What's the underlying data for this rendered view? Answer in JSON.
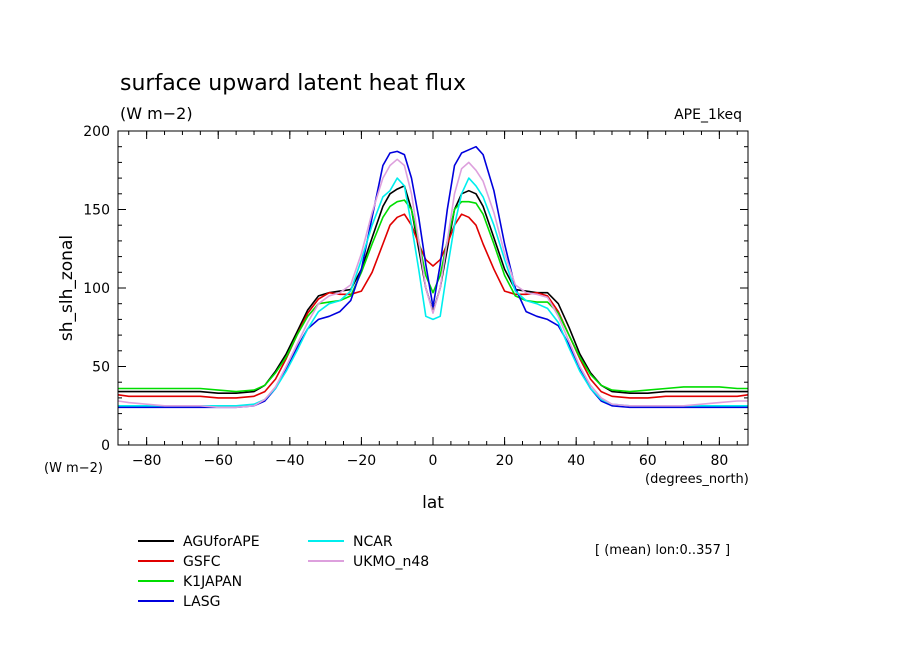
{
  "chart_data": {
    "type": "line",
    "title": "surface upward latent heat flux",
    "units": "(W m−2)",
    "units_bottom": "(W m−2)",
    "experiment": "APE_1keq",
    "ylabel": "sh_slh_zonal",
    "xlabel": "lat",
    "x_units": "(degrees_north)",
    "note": "[ (mean) lon:0..357 ]",
    "xlim": [
      -88,
      88
    ],
    "ylim": [
      0,
      200
    ],
    "x_ticks": [
      -80,
      -60,
      -40,
      -20,
      0,
      20,
      40,
      60,
      80
    ],
    "y_ticks": [
      0,
      50,
      100,
      150,
      200
    ],
    "grid": false,
    "legend_position": "bottom-left",
    "x": [
      -88,
      -85,
      -80,
      -75,
      -70,
      -65,
      -60,
      -55,
      -50,
      -47,
      -44,
      -41,
      -38,
      -35,
      -32,
      -29,
      -26,
      -23,
      -20,
      -17,
      -14,
      -12,
      -10,
      -8,
      -6,
      -4,
      -2,
      0,
      2,
      4,
      6,
      8,
      10,
      12,
      14,
      17,
      20,
      23,
      26,
      29,
      32,
      35,
      38,
      41,
      44,
      47,
      50,
      55,
      60,
      65,
      70,
      75,
      80,
      85,
      88
    ],
    "series": [
      {
        "name": "AGUforAPE",
        "color": "#000000",
        "values": [
          34,
          34,
          34,
          34,
          34,
          34,
          33,
          33,
          34,
          38,
          47,
          58,
          72,
          86,
          95,
          97,
          98,
          99,
          112,
          132,
          152,
          160,
          163,
          165,
          150,
          125,
          100,
          85,
          100,
          125,
          150,
          160,
          162,
          160,
          152,
          132,
          112,
          99,
          98,
          97,
          97,
          90,
          75,
          58,
          46,
          38,
          34,
          33,
          33,
          34,
          34,
          34,
          34,
          34,
          34
        ]
      },
      {
        "name": "GSFC",
        "color": "#e00000",
        "values": [
          32,
          31,
          31,
          31,
          31,
          31,
          30,
          30,
          31,
          34,
          42,
          55,
          70,
          84,
          93,
          97,
          96,
          96,
          98,
          110,
          128,
          140,
          145,
          147,
          140,
          128,
          118,
          114,
          118,
          128,
          140,
          147,
          145,
          140,
          128,
          112,
          98,
          96,
          96,
          97,
          95,
          85,
          70,
          55,
          42,
          34,
          31,
          30,
          30,
          31,
          31,
          31,
          31,
          31,
          32
        ]
      },
      {
        "name": "K1JAPAN",
        "color": "#00dd00",
        "values": [
          36,
          36,
          36,
          36,
          36,
          36,
          35,
          34,
          35,
          38,
          46,
          56,
          70,
          82,
          90,
          91,
          92,
          95,
          110,
          128,
          145,
          152,
          155,
          156,
          150,
          130,
          108,
          97,
          108,
          130,
          150,
          155,
          155,
          154,
          147,
          128,
          108,
          95,
          92,
          91,
          91,
          84,
          70,
          56,
          45,
          38,
          35,
          34,
          35,
          36,
          37,
          37,
          37,
          36,
          36
        ]
      },
      {
        "name": "LASG",
        "color": "#0000dd",
        "values": [
          24,
          24,
          24,
          24,
          24,
          24,
          24,
          24,
          25,
          28,
          36,
          48,
          62,
          74,
          80,
          82,
          85,
          92,
          112,
          145,
          178,
          186,
          187,
          185,
          170,
          145,
          115,
          88,
          115,
          150,
          178,
          186,
          188,
          190,
          185,
          162,
          128,
          100,
          85,
          82,
          80,
          76,
          64,
          48,
          36,
          28,
          25,
          24,
          24,
          24,
          24,
          24,
          24,
          24,
          24
        ]
      },
      {
        "name": "NCAR",
        "color": "#00eeee",
        "values": [
          25,
          25,
          25,
          25,
          25,
          25,
          25,
          25,
          26,
          29,
          36,
          47,
          60,
          74,
          85,
          90,
          92,
          98,
          118,
          140,
          158,
          162,
          170,
          165,
          140,
          112,
          82,
          80,
          82,
          112,
          140,
          160,
          170,
          165,
          158,
          140,
          118,
          98,
          92,
          90,
          87,
          78,
          62,
          47,
          36,
          29,
          26,
          25,
          25,
          25,
          25,
          25,
          25,
          25,
          25
        ]
      },
      {
        "name": "UKMO_n48",
        "color": "#dda0dd",
        "values": [
          28,
          27,
          26,
          25,
          25,
          25,
          24,
          24,
          25,
          29,
          37,
          50,
          64,
          78,
          90,
          95,
          97,
          102,
          122,
          148,
          170,
          178,
          182,
          178,
          160,
          130,
          100,
          84,
          100,
          130,
          160,
          176,
          180,
          175,
          168,
          148,
          122,
          102,
          97,
          96,
          94,
          82,
          66,
          50,
          38,
          30,
          26,
          25,
          25,
          25,
          25,
          26,
          27,
          28,
          28
        ]
      }
    ]
  }
}
